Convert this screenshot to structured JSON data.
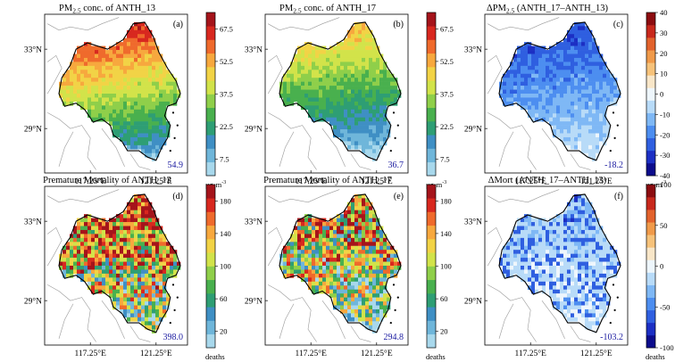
{
  "chart_data": [
    {
      "type": "heatmap",
      "title_parts": [
        "PM",
        "2.5",
        " conc. of ANTH_13"
      ],
      "panel_label": "(a)",
      "regional_value": "54.9",
      "colorbar": {
        "ticks": [
          "67.5",
          "52.5",
          "37.5",
          "22.5",
          "7.5"
        ],
        "unit_parts": [
          "μg·m",
          "-3"
        ],
        "palette": "sequential"
      },
      "xticks": [
        "117.25°E",
        "121.25°E"
      ],
      "yticks": [
        "33°N",
        "29°N"
      ]
    },
    {
      "type": "heatmap",
      "title_parts": [
        "PM",
        "2.5",
        " conc. of ANTH_17"
      ],
      "panel_label": "(b)",
      "regional_value": "36.7",
      "colorbar": {
        "ticks": [
          "67.5",
          "52.5",
          "37.5",
          "22.5",
          "7.5"
        ],
        "unit_parts": [
          "μg·m",
          "-3"
        ],
        "palette": "sequential"
      },
      "xticks": [
        "117.25°E",
        "121.25°E"
      ],
      "yticks": [
        "33°N",
        "29°N"
      ]
    },
    {
      "type": "heatmap",
      "title_parts": [
        "ΔPM",
        "2.5",
        " (ANTH_17–ANTH_13)"
      ],
      "panel_label": "(c)",
      "regional_value": "-18.2",
      "colorbar": {
        "ticks": [
          "40",
          "30",
          "20",
          "10",
          "0",
          "-10",
          "-20",
          "-30",
          "-40"
        ],
        "unit_parts": [
          "μg·m",
          "-3"
        ],
        "palette": "diverging"
      },
      "xticks": [
        "117.25°E",
        "121.25°E"
      ],
      "yticks": [
        "33°N",
        "29°N"
      ]
    },
    {
      "type": "heatmap",
      "title_parts": [
        "Premature Mortality of ANTH_13",
        "",
        ""
      ],
      "panel_label": "(d)",
      "regional_value": "398.0",
      "colorbar": {
        "ticks": [
          "180",
          "140",
          "100",
          "60",
          "20"
        ],
        "unit_parts": [
          "deaths",
          ""
        ],
        "palette": "sequential"
      },
      "xticks": [
        "117.25°E",
        "121.25°E"
      ],
      "yticks": [
        "33°N",
        "29°N"
      ]
    },
    {
      "type": "heatmap",
      "title_parts": [
        "Premature Mortality of ANTH_17",
        "",
        ""
      ],
      "panel_label": "(e)",
      "regional_value": "294.8",
      "colorbar": {
        "ticks": [
          "180",
          "140",
          "100",
          "60",
          "20"
        ],
        "unit_parts": [
          "deaths",
          ""
        ],
        "palette": "sequential"
      },
      "xticks": [
        "117.25°E",
        "121.25°E"
      ],
      "yticks": [
        "33°N",
        "29°N"
      ]
    },
    {
      "type": "heatmap",
      "title_parts": [
        "ΔMort (ANTH_17–ANTH_13)",
        "",
        ""
      ],
      "panel_label": "(f)",
      "regional_value": "-103.2",
      "colorbar": {
        "ticks": [
          "100",
          "50",
          "0",
          "-50",
          "-100"
        ],
        "unit_parts": [
          "deaths",
          ""
        ],
        "palette": "diverging"
      },
      "xticks": [
        "117.25°E",
        "121.25°E"
      ],
      "yticks": [
        "33°N",
        "29°N"
      ]
    }
  ],
  "colors": {
    "sequential": [
      "#a8d8ec",
      "#6fb6da",
      "#3f8fc4",
      "#2e9e74",
      "#49b04e",
      "#8fcf4a",
      "#d2e34a",
      "#f2d346",
      "#f7a83e",
      "#ef6a2c",
      "#d8281f",
      "#a5141b"
    ],
    "diverging": [
      "#0c0c8c",
      "#1c2fc4",
      "#2f5fe0",
      "#4d8ef0",
      "#7fb8f5",
      "#b8dbf8",
      "#eef6fc",
      "#f8e6c8",
      "#f6c27a",
      "#f09a4a",
      "#e2622c",
      "#c8281c",
      "#8c0c10"
    ],
    "value_text": "#1a1aa0"
  }
}
